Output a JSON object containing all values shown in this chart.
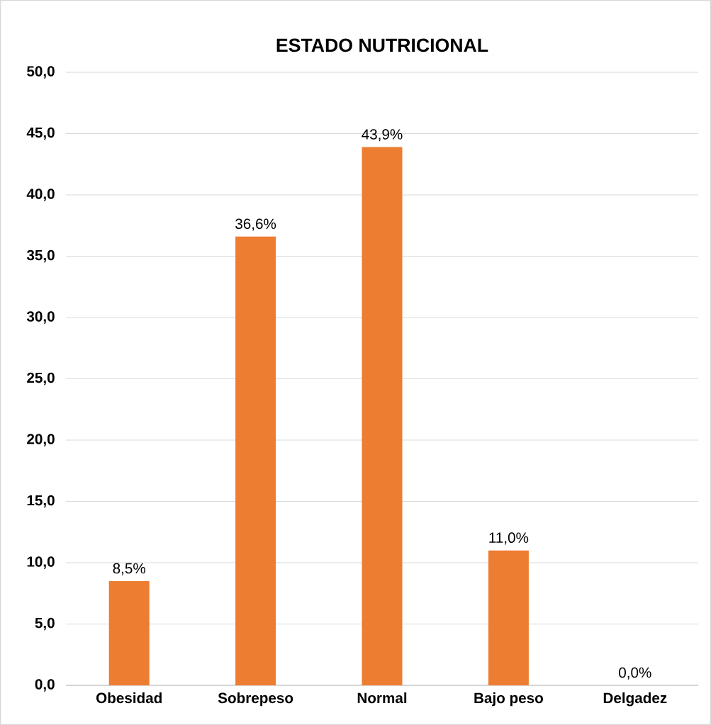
{
  "chart_data": {
    "type": "bar",
    "title": "ESTADO NUTRICIONAL",
    "categories": [
      "Obesidad",
      "Sobrepeso",
      "Normal",
      "Bajo peso",
      "Delgadez"
    ],
    "values": [
      8.5,
      36.6,
      43.9,
      11.0,
      0.0
    ],
    "value_labels": [
      "8,5%",
      "36,6%",
      "43,9%",
      "11,0%",
      "0,0%"
    ],
    "color": "#ed7d31",
    "ylim": [
      0,
      50
    ],
    "yticks": [
      {
        "value": 0,
        "label": "0,0"
      },
      {
        "value": 5,
        "label": "5,0"
      },
      {
        "value": 10,
        "label": "10,0"
      },
      {
        "value": 15,
        "label": "15,0"
      },
      {
        "value": 20,
        "label": "20,0"
      },
      {
        "value": 25,
        "label": "25,0"
      },
      {
        "value": 30,
        "label": "30,0"
      },
      {
        "value": 35,
        "label": "35,0"
      },
      {
        "value": 40,
        "label": "40,0"
      },
      {
        "value": 45,
        "label": "45,0"
      },
      {
        "value": 50,
        "label": "50,0"
      }
    ],
    "grid": "y"
  }
}
